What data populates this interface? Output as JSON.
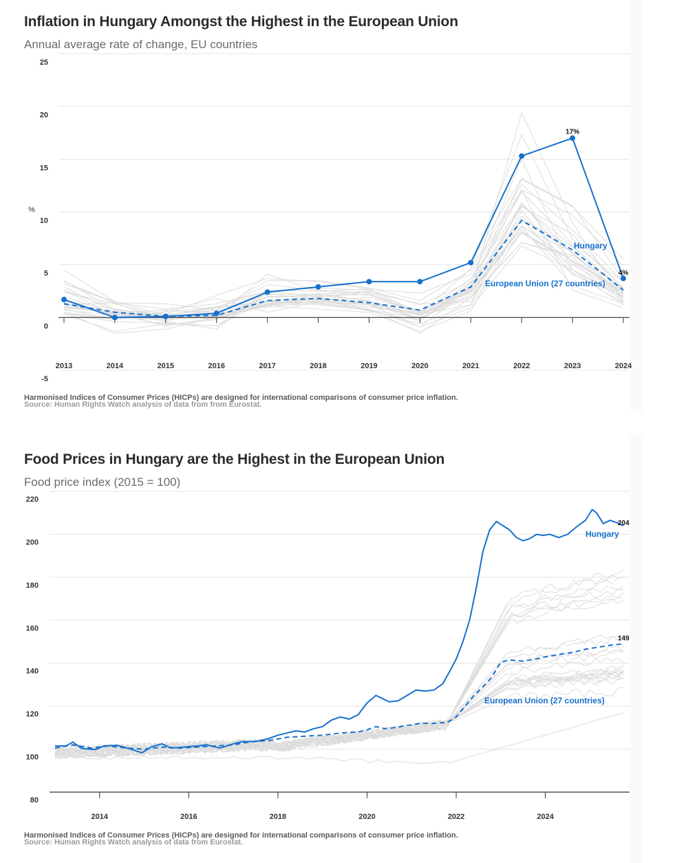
{
  "chart_data": [
    {
      "type": "line",
      "title": "Inflation in Hungary Amongst the Highest in the European Union",
      "subtitle": "Annual average rate of change, EU countries",
      "xlabel": "",
      "ylabel": "%",
      "x": [
        2013,
        2014,
        2015,
        2016,
        2017,
        2018,
        2019,
        2020,
        2021,
        2022,
        2023,
        2024
      ],
      "ylim": [
        -5,
        25
      ],
      "yticks": [
        25,
        20,
        15,
        10,
        5,
        0,
        -5
      ],
      "xticks": [
        "2013",
        "2014",
        "2015",
        "2016",
        "2017",
        "2018",
        "2019",
        "2020",
        "2021",
        "2022",
        "2023",
        "2024"
      ],
      "grid": true,
      "series": [
        {
          "name": "Hungary",
          "style": "solid-markers",
          "color": "#1570cd",
          "values": [
            1.7,
            0.0,
            0.1,
            0.4,
            2.4,
            2.9,
            3.4,
            3.4,
            5.2,
            15.3,
            17.0,
            3.7
          ]
        },
        {
          "name": "European Union (27 countries)",
          "style": "dashed",
          "color": "#1570cd",
          "values": [
            1.3,
            0.5,
            0.1,
            0.2,
            1.6,
            1.8,
            1.4,
            0.7,
            2.9,
            9.2,
            6.4,
            2.6
          ]
        }
      ],
      "background_series_color": "#dcdcdc",
      "background_series": [
        [
          4.5,
          1.5,
          0.2,
          0.9,
          1.6,
          2.0,
          2.2,
          0.6,
          2.5,
          19.4,
          9.0,
          1.5
        ],
        [
          3.5,
          0.7,
          0.3,
          2.1,
          3.7,
          3.4,
          2.7,
          0.4,
          4.6,
          17.3,
          7.4,
          2.8
        ],
        [
          2.4,
          1.3,
          0.0,
          0.7,
          3.1,
          2.6,
          2.3,
          0.2,
          3.3,
          15.0,
          4.5,
          1.9
        ],
        [
          2.9,
          0.5,
          -0.8,
          0.0,
          4.1,
          2.5,
          2.1,
          0.5,
          2.9,
          13.1,
          10.5,
          5.5
        ],
        [
          1.2,
          1.4,
          1.3,
          0.7,
          3.5,
          3.5,
          2.8,
          1.6,
          4.5,
          12.6,
          8.3,
          3.4
        ],
        [
          0.8,
          -0.2,
          0.5,
          1.0,
          1.4,
          1.7,
          1.5,
          -0.1,
          2.2,
          8.6,
          3.0,
          1.3
        ],
        [
          2.6,
          0.2,
          -0.3,
          0.5,
          2.2,
          2.2,
          2.5,
          0.3,
          3.7,
          10.7,
          6.1,
          1.6
        ],
        [
          1.6,
          0.8,
          0.1,
          0.3,
          1.5,
          1.5,
          1.3,
          0.3,
          2.6,
          8.0,
          5.4,
          2.3
        ],
        [
          0.9,
          0.5,
          0.1,
          0.2,
          1.3,
          1.9,
          1.2,
          0.4,
          2.0,
          7.1,
          5.9,
          2.8
        ],
        [
          1.3,
          0.2,
          0.1,
          1.0,
          1.1,
          2.3,
          1.5,
          -0.3,
          3.2,
          9.3,
          6.7,
          2.6
        ],
        [
          0.5,
          -1.5,
          -1.1,
          0.0,
          1.1,
          0.8,
          0.5,
          -1.3,
          0.6,
          9.3,
          4.2,
          1.4
        ],
        [
          0.3,
          -1.3,
          -0.6,
          -0.8,
          1.6,
          2.0,
          0.7,
          -0.6,
          1.2,
          10.9,
          5.2,
          1.5
        ],
        [
          2.0,
          0.4,
          0.0,
          -0.1,
          1.2,
          1.8,
          0.6,
          -0.3,
          3.0,
          8.3,
          4.1,
          2.0
        ],
        [
          0.5,
          -0.1,
          -0.1,
          0.1,
          1.2,
          1.2,
          0.7,
          0.0,
          1.9,
          7.1,
          5.7,
          1.9
        ],
        [
          1.0,
          0.4,
          0.2,
          0.1,
          1.9,
          2.1,
          1.6,
          0.2,
          2.4,
          8.1,
          5.4,
          2.5
        ],
        [
          3.2,
          1.4,
          0.8,
          1.3,
          2.5,
          2.8,
          2.6,
          1.2,
          3.4,
          11.9,
          7.0,
          3.4
        ],
        [
          0.4,
          -0.4,
          -0.5,
          -0.8,
          2.3,
          1.6,
          1.2,
          -0.9,
          2.8,
          12.1,
          2.6,
          0.9
        ],
        [
          3.2,
          1.5,
          0.2,
          1.0,
          2.5,
          2.0,
          2.4,
          1.3,
          1.5,
          10.1,
          4.5,
          2.1
        ],
        [
          1.4,
          0.3,
          -0.7,
          -0.2,
          1.3,
          1.4,
          0.8,
          -1.5,
          1.9,
          8.7,
          5.3,
          2.4
        ],
        [
          2.6,
          0.8,
          0.1,
          0.0,
          1.6,
          1.3,
          0.8,
          -0.9,
          0.9,
          6.8,
          4.5,
          1.2
        ],
        [
          1.6,
          0.2,
          -0.2,
          0.1,
          2.0,
          2.1,
          1.6,
          -0.1,
          2.5,
          10.5,
          7.9,
          2.7
        ],
        [
          0.7,
          0.2,
          0.3,
          0.7,
          1.2,
          1.8,
          1.3,
          0.2,
          2.6,
          8.6,
          6.2,
          2.0
        ],
        [
          1.7,
          0.3,
          0.0,
          0.4,
          2.4,
          2.9,
          3.4,
          3.4,
          5.2,
          13.2,
          10.6,
          3.5
        ],
        [
          1.2,
          0.6,
          0.1,
          0.0,
          1.2,
          1.6,
          1.9,
          0.5,
          2.8,
          10.6,
          6.8,
          2.4
        ],
        [
          3.4,
          1.4,
          -0.4,
          -1.1,
          2.6,
          2.5,
          2.7,
          2.3,
          4.1,
          12.1,
          9.7,
          4.9
        ],
        [
          0.4,
          -0.2,
          0.6,
          1.8,
          0.5,
          1.5,
          1.0,
          0.3,
          1.2,
          8.1,
          5.0,
          2.3
        ],
        [
          1.1,
          0.4,
          0.7,
          0.4,
          1.0,
          1.5,
          1.2,
          -0.1,
          2.8,
          9.6,
          6.1,
          2.2
        ]
      ],
      "annotations": [
        {
          "text": "17%",
          "x": 2023,
          "y": 17.0,
          "series": "Hungary"
        },
        {
          "text": "4%",
          "x": 2024,
          "y": 3.7,
          "series": "Hungary"
        },
        {
          "text": "Hungary",
          "x": 2023.3,
          "y": 6.9,
          "color": "#1570cd"
        },
        {
          "text": "European Union (27 countries)",
          "x": 2022.2,
          "y": 3.2,
          "color": "#1570cd"
        }
      ],
      "note": "Harmonised Indices of Consumer Prices (HICPs) are designed for international comparisons of consumer price inflation.",
      "source": "Source: Human Rights Watch analysis of data from from Eurostat."
    },
    {
      "type": "line",
      "title": "Food Prices in Hungary are the Highest in the European Union",
      "subtitle": "Food price index (2015 = 100)",
      "xlabel": "",
      "ylabel": "",
      "xlim": [
        2013.0,
        2025.75
      ],
      "ylim": [
        80,
        220
      ],
      "yticks": [
        220,
        200,
        180,
        160,
        140,
        120,
        100,
        80
      ],
      "xticks": [
        "2014",
        "2016",
        "2018",
        "2020",
        "2022",
        "2024"
      ],
      "xtick_values": [
        2014,
        2016,
        2018,
        2020,
        2022,
        2024
      ],
      "grid": true,
      "series": [
        {
          "name": "Hungary",
          "style": "solid",
          "color": "#1570cd",
          "x": [
            2013.0,
            2013.25,
            2013.4,
            2013.6,
            2013.9,
            2014.1,
            2014.4,
            2014.7,
            2014.95,
            2015.15,
            2015.4,
            2015.6,
            2015.9,
            2016.2,
            2016.4,
            2016.7,
            2017.0,
            2017.2,
            2017.5,
            2017.8,
            2018.0,
            2018.2,
            2018.4,
            2018.6,
            2018.8,
            2019.0,
            2019.2,
            2019.4,
            2019.6,
            2019.8,
            2020.0,
            2020.2,
            2020.35,
            2020.5,
            2020.7,
            2020.9,
            2021.1,
            2021.3,
            2021.5,
            2021.7,
            2021.85,
            2022.0,
            2022.15,
            2022.3,
            2022.45,
            2022.6,
            2022.75,
            2022.9,
            2023.05,
            2023.2,
            2023.35,
            2023.5,
            2023.65,
            2023.8,
            2023.95,
            2024.1,
            2024.3,
            2024.5,
            2024.7,
            2024.9,
            2025.05,
            2025.15,
            2025.3,
            2025.45,
            2025.6,
            2025.75
          ],
          "values": [
            101.5,
            101.5,
            103.3,
            100.3,
            99.8,
            101.5,
            101.8,
            100.0,
            98.3,
            101.0,
            102.5,
            100.5,
            101.0,
            101.5,
            102.0,
            100.5,
            102.5,
            103.5,
            103.5,
            105.0,
            106.5,
            107.5,
            108.5,
            108.0,
            109.5,
            110.5,
            113.5,
            115.0,
            114.0,
            116.0,
            121.5,
            125.0,
            123.5,
            122.0,
            122.5,
            125.0,
            127.5,
            127.0,
            127.5,
            130.5,
            136.0,
            142.0,
            150.0,
            160.0,
            175.0,
            192.0,
            202.0,
            206.0,
            204.0,
            202.0,
            198.5,
            197.0,
            198.0,
            200.0,
            199.5,
            200.0,
            198.5,
            200.0,
            203.5,
            206.5,
            211.5,
            210.0,
            205.0,
            206.5,
            205.5,
            204.0
          ]
        },
        {
          "name": "European Union (27 countries)",
          "style": "dashed",
          "color": "#1570cd",
          "x": [
            2013.0,
            2013.4,
            2013.8,
            2014.2,
            2014.6,
            2015.0,
            2015.4,
            2015.8,
            2016.2,
            2016.6,
            2017.0,
            2017.4,
            2017.8,
            2018.2,
            2018.6,
            2019.0,
            2019.4,
            2019.8,
            2020.0,
            2020.2,
            2020.4,
            2020.6,
            2020.9,
            2021.2,
            2021.5,
            2021.8,
            2022.0,
            2022.2,
            2022.4,
            2022.6,
            2022.8,
            2023.0,
            2023.2,
            2023.5,
            2023.8,
            2024.0,
            2024.3,
            2024.6,
            2024.9,
            2025.2,
            2025.5,
            2025.75
          ],
          "values": [
            100.5,
            102.0,
            100.5,
            101.5,
            100.5,
            100.0,
            101.0,
            100.5,
            101.0,
            101.5,
            102.0,
            103.5,
            104.0,
            105.5,
            106.0,
            106.5,
            107.5,
            108.0,
            109.0,
            110.5,
            109.5,
            110.0,
            111.0,
            112.0,
            112.0,
            112.5,
            115.0,
            120.0,
            125.0,
            129.0,
            133.5,
            140.5,
            141.5,
            141.0,
            142.0,
            143.0,
            144.0,
            145.0,
            146.5,
            147.5,
            148.5,
            149.0
          ]
        }
      ],
      "background_series_color": "#dcdcdc",
      "annotations": [
        {
          "text": "204",
          "x": 2025.75,
          "y": 204,
          "series": "Hungary"
        },
        {
          "text": "149",
          "x": 2025.75,
          "y": 149,
          "series": "European Union (27 countries)"
        },
        {
          "text": "Hungary",
          "x": 2024.9,
          "y": 197.5,
          "color": "#1570cd"
        },
        {
          "text": "European Union (27 countries)",
          "x": 2022.65,
          "y": 122.5,
          "color": "#1570cd"
        }
      ],
      "note": "Harmonised Indices of Consumer Prices (HICPs) are designed for international comparisons of consumer price inflation.",
      "source": "Source: Human Rights Watch analysis of data from Eurostat."
    }
  ]
}
